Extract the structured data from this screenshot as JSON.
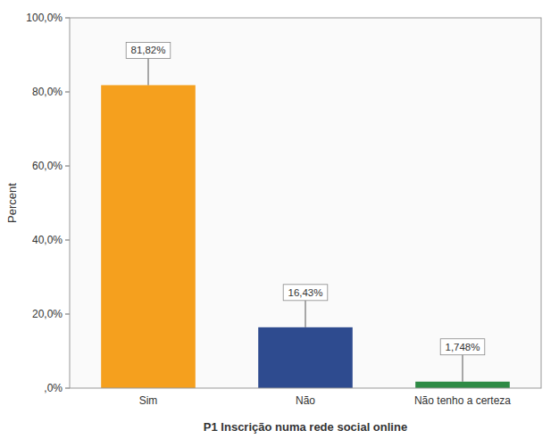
{
  "chart_data": {
    "type": "bar",
    "categories": [
      "Sim",
      "Não",
      "Não tenho a certeza"
    ],
    "values": [
      81.82,
      16.43,
      1.748
    ],
    "colors": [
      "#F5A01E",
      "#2E4B8F",
      "#2E8B45"
    ],
    "xlabel": "P1 Inscrição numa rede social online",
    "ylabel": "Percent",
    "ylim": [
      0,
      100
    ],
    "yticks": [
      {
        "value": 0,
        "label": ",0%"
      },
      {
        "value": 20,
        "label": "20,0%"
      },
      {
        "value": 40,
        "label": "40,0%"
      },
      {
        "value": 60,
        "label": "60,0%"
      },
      {
        "value": 80,
        "label": "80,0%"
      },
      {
        "value": 100,
        "label": "100,0%"
      }
    ],
    "data_labels": true,
    "value_labels": [
      "81,82%",
      "16,43%",
      "1,748%"
    ],
    "grid": false
  }
}
